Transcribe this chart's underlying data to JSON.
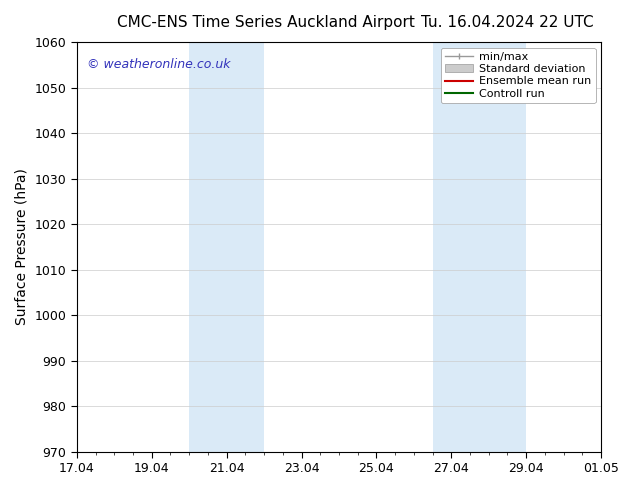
{
  "title_left": "CMC-ENS Time Series Auckland Airport",
  "title_right": "Tu. 16.04.2024 22 UTC",
  "ylabel": "Surface Pressure (hPa)",
  "ylim": [
    970,
    1060
  ],
  "yticks": [
    970,
    980,
    990,
    1000,
    1010,
    1020,
    1030,
    1040,
    1050,
    1060
  ],
  "xtick_labels": [
    "17.04",
    "19.04",
    "21.04",
    "23.04",
    "25.04",
    "27.04",
    "29.04",
    "01.05"
  ],
  "xtick_positions": [
    0,
    2,
    4,
    6,
    8,
    10,
    12,
    14
  ],
  "xlim": [
    0,
    14
  ],
  "shaded_bands": [
    {
      "start": 3.0,
      "end": 5.0
    },
    {
      "start": 9.5,
      "end": 12.0
    }
  ],
  "shade_color": "#daeaf7",
  "watermark_text": "© weatheronline.co.uk",
  "watermark_color": "#3333bb",
  "legend_items": [
    {
      "label": "min/max",
      "color": "#aaaaaa",
      "style": "errorbar"
    },
    {
      "label": "Standard deviation",
      "color": "#cccccc",
      "style": "patch"
    },
    {
      "label": "Ensemble mean run",
      "color": "#cc0000",
      "style": "line"
    },
    {
      "label": "Controll run",
      "color": "#006600",
      "style": "line"
    }
  ],
  "grid_color": "#cccccc",
  "bg_color": "#ffffff",
  "title_fontsize": 11,
  "tick_fontsize": 9,
  "ylabel_fontsize": 10,
  "watermark_fontsize": 9,
  "legend_fontsize": 8
}
